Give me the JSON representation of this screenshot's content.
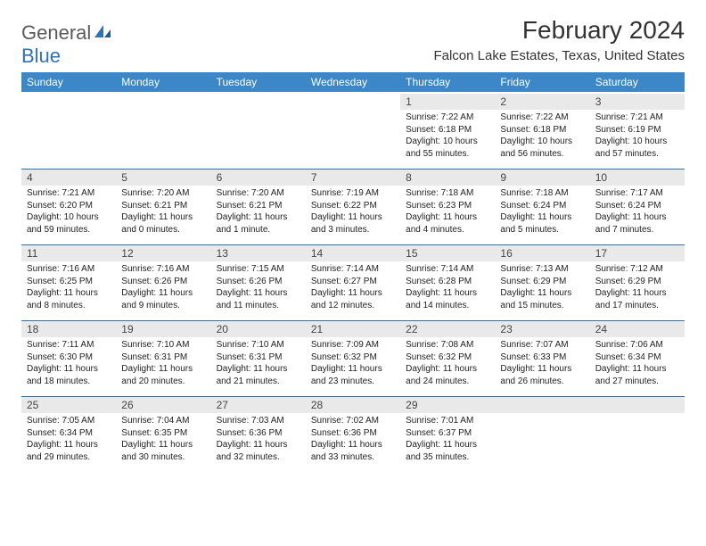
{
  "brand": {
    "part1": "General",
    "part2": "Blue"
  },
  "title": "February 2024",
  "location": "Falcon Lake Estates, Texas, United States",
  "colors": {
    "header_bg": "#3b87c8",
    "header_text": "#ffffff",
    "daybar_bg": "#e9e9e9",
    "daybar_border": "#2f6fa8",
    "logo_gray": "#5a5a5a",
    "logo_blue": "#2b74b8"
  },
  "weekdays": [
    "Sunday",
    "Monday",
    "Tuesday",
    "Wednesday",
    "Thursday",
    "Friday",
    "Saturday"
  ],
  "weeks": [
    [
      null,
      null,
      null,
      null,
      {
        "n": "1",
        "sr": "7:22 AM",
        "ss": "6:18 PM",
        "dl": "10 hours and 55 minutes."
      },
      {
        "n": "2",
        "sr": "7:22 AM",
        "ss": "6:18 PM",
        "dl": "10 hours and 56 minutes."
      },
      {
        "n": "3",
        "sr": "7:21 AM",
        "ss": "6:19 PM",
        "dl": "10 hours and 57 minutes."
      }
    ],
    [
      {
        "n": "4",
        "sr": "7:21 AM",
        "ss": "6:20 PM",
        "dl": "10 hours and 59 minutes."
      },
      {
        "n": "5",
        "sr": "7:20 AM",
        "ss": "6:21 PM",
        "dl": "11 hours and 0 minutes."
      },
      {
        "n": "6",
        "sr": "7:20 AM",
        "ss": "6:21 PM",
        "dl": "11 hours and 1 minute."
      },
      {
        "n": "7",
        "sr": "7:19 AM",
        "ss": "6:22 PM",
        "dl": "11 hours and 3 minutes."
      },
      {
        "n": "8",
        "sr": "7:18 AM",
        "ss": "6:23 PM",
        "dl": "11 hours and 4 minutes."
      },
      {
        "n": "9",
        "sr": "7:18 AM",
        "ss": "6:24 PM",
        "dl": "11 hours and 5 minutes."
      },
      {
        "n": "10",
        "sr": "7:17 AM",
        "ss": "6:24 PM",
        "dl": "11 hours and 7 minutes."
      }
    ],
    [
      {
        "n": "11",
        "sr": "7:16 AM",
        "ss": "6:25 PM",
        "dl": "11 hours and 8 minutes."
      },
      {
        "n": "12",
        "sr": "7:16 AM",
        "ss": "6:26 PM",
        "dl": "11 hours and 9 minutes."
      },
      {
        "n": "13",
        "sr": "7:15 AM",
        "ss": "6:26 PM",
        "dl": "11 hours and 11 minutes."
      },
      {
        "n": "14",
        "sr": "7:14 AM",
        "ss": "6:27 PM",
        "dl": "11 hours and 12 minutes."
      },
      {
        "n": "15",
        "sr": "7:14 AM",
        "ss": "6:28 PM",
        "dl": "11 hours and 14 minutes."
      },
      {
        "n": "16",
        "sr": "7:13 AM",
        "ss": "6:29 PM",
        "dl": "11 hours and 15 minutes."
      },
      {
        "n": "17",
        "sr": "7:12 AM",
        "ss": "6:29 PM",
        "dl": "11 hours and 17 minutes."
      }
    ],
    [
      {
        "n": "18",
        "sr": "7:11 AM",
        "ss": "6:30 PM",
        "dl": "11 hours and 18 minutes."
      },
      {
        "n": "19",
        "sr": "7:10 AM",
        "ss": "6:31 PM",
        "dl": "11 hours and 20 minutes."
      },
      {
        "n": "20",
        "sr": "7:10 AM",
        "ss": "6:31 PM",
        "dl": "11 hours and 21 minutes."
      },
      {
        "n": "21",
        "sr": "7:09 AM",
        "ss": "6:32 PM",
        "dl": "11 hours and 23 minutes."
      },
      {
        "n": "22",
        "sr": "7:08 AM",
        "ss": "6:32 PM",
        "dl": "11 hours and 24 minutes."
      },
      {
        "n": "23",
        "sr": "7:07 AM",
        "ss": "6:33 PM",
        "dl": "11 hours and 26 minutes."
      },
      {
        "n": "24",
        "sr": "7:06 AM",
        "ss": "6:34 PM",
        "dl": "11 hours and 27 minutes."
      }
    ],
    [
      {
        "n": "25",
        "sr": "7:05 AM",
        "ss": "6:34 PM",
        "dl": "11 hours and 29 minutes."
      },
      {
        "n": "26",
        "sr": "7:04 AM",
        "ss": "6:35 PM",
        "dl": "11 hours and 30 minutes."
      },
      {
        "n": "27",
        "sr": "7:03 AM",
        "ss": "6:36 PM",
        "dl": "11 hours and 32 minutes."
      },
      {
        "n": "28",
        "sr": "7:02 AM",
        "ss": "6:36 PM",
        "dl": "11 hours and 33 minutes."
      },
      {
        "n": "29",
        "sr": "7:01 AM",
        "ss": "6:37 PM",
        "dl": "11 hours and 35 minutes."
      },
      null,
      null
    ]
  ],
  "labels": {
    "sunrise": "Sunrise: ",
    "sunset": "Sunset: ",
    "daylight": "Daylight: "
  }
}
